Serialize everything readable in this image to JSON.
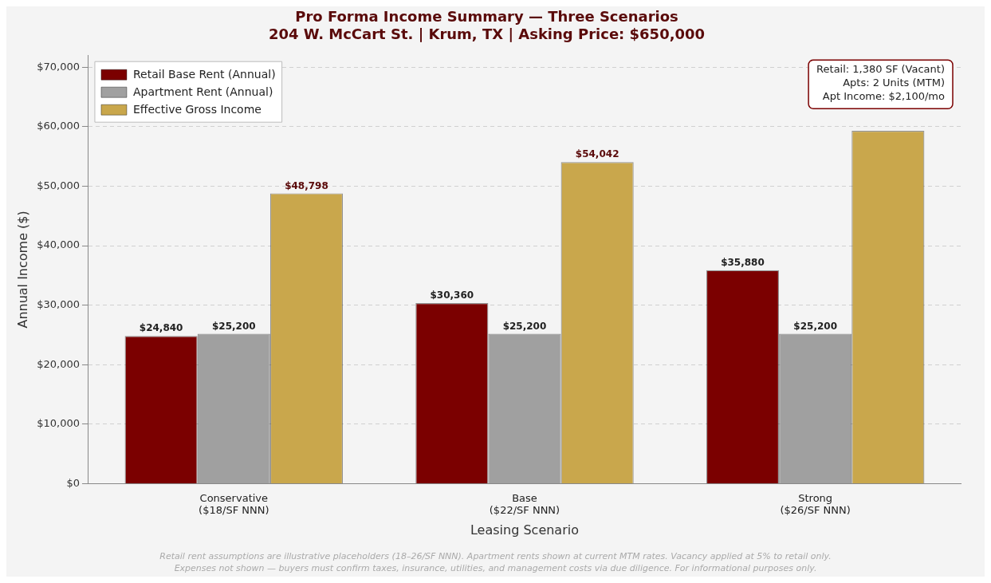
{
  "chart_data": {
    "type": "bar",
    "title": "Pro Forma Income Summary — Three Scenarios",
    "subtitle": "204 W. McCart St. | Krum, TX | Asking Price: $650,000",
    "xlabel": "Leasing Scenario",
    "ylabel": "Annual Income ($)",
    "categories": [
      "Conservative\n($18/SF NNN)",
      "Base\n($22/SF NNN)",
      "Strong\n($26/SF NNN)"
    ],
    "series": [
      {
        "name": "Retail Base Rent (Annual)",
        "color": "#7b0000",
        "values": [
          24840,
          30360,
          35880
        ],
        "value_labels": [
          "$24,840",
          "$30,360",
          "$35,880"
        ]
      },
      {
        "name": "Apartment Rent (Annual)",
        "color": "#a0a0a0",
        "values": [
          25200,
          25200,
          25200
        ],
        "value_labels": [
          "$25,200",
          "$25,200",
          "$25,200"
        ]
      },
      {
        "name": "Effective Gross Income",
        "color": "#c9a74c",
        "values": [
          48798,
          54042,
          59300
        ],
        "value_labels": [
          "$48,798",
          "$54,042",
          null
        ]
      }
    ],
    "ylim": [
      0,
      72000
    ],
    "yticks": [
      {
        "value": 0,
        "label": "$0"
      },
      {
        "value": 10000,
        "label": "$10,000"
      },
      {
        "value": 20000,
        "label": "$20,000"
      },
      {
        "value": 30000,
        "label": "$30,000"
      },
      {
        "value": 40000,
        "label": "$40,000"
      },
      {
        "value": 50000,
        "label": "$50,000"
      },
      {
        "value": 60000,
        "label": "$60,000"
      },
      {
        "value": 70000,
        "label": "$70,000"
      }
    ],
    "grid": "y",
    "legend": "top left",
    "annotations": [
      "Retail: 1,380 SF (Vacant)\nApts: 2 Units (MTM)\nApt Income: $2,100/mo",
      "Retail rent assumptions are illustrative placeholders (18–26/SF NNN). Apartment rents shown at current MTM rates. Vacancy applied at 5% to retail only.\nExpenses not shown — buyers must confirm taxes, insurance, utilities, and management costs via due diligence. For informational purposes only."
    ]
  }
}
